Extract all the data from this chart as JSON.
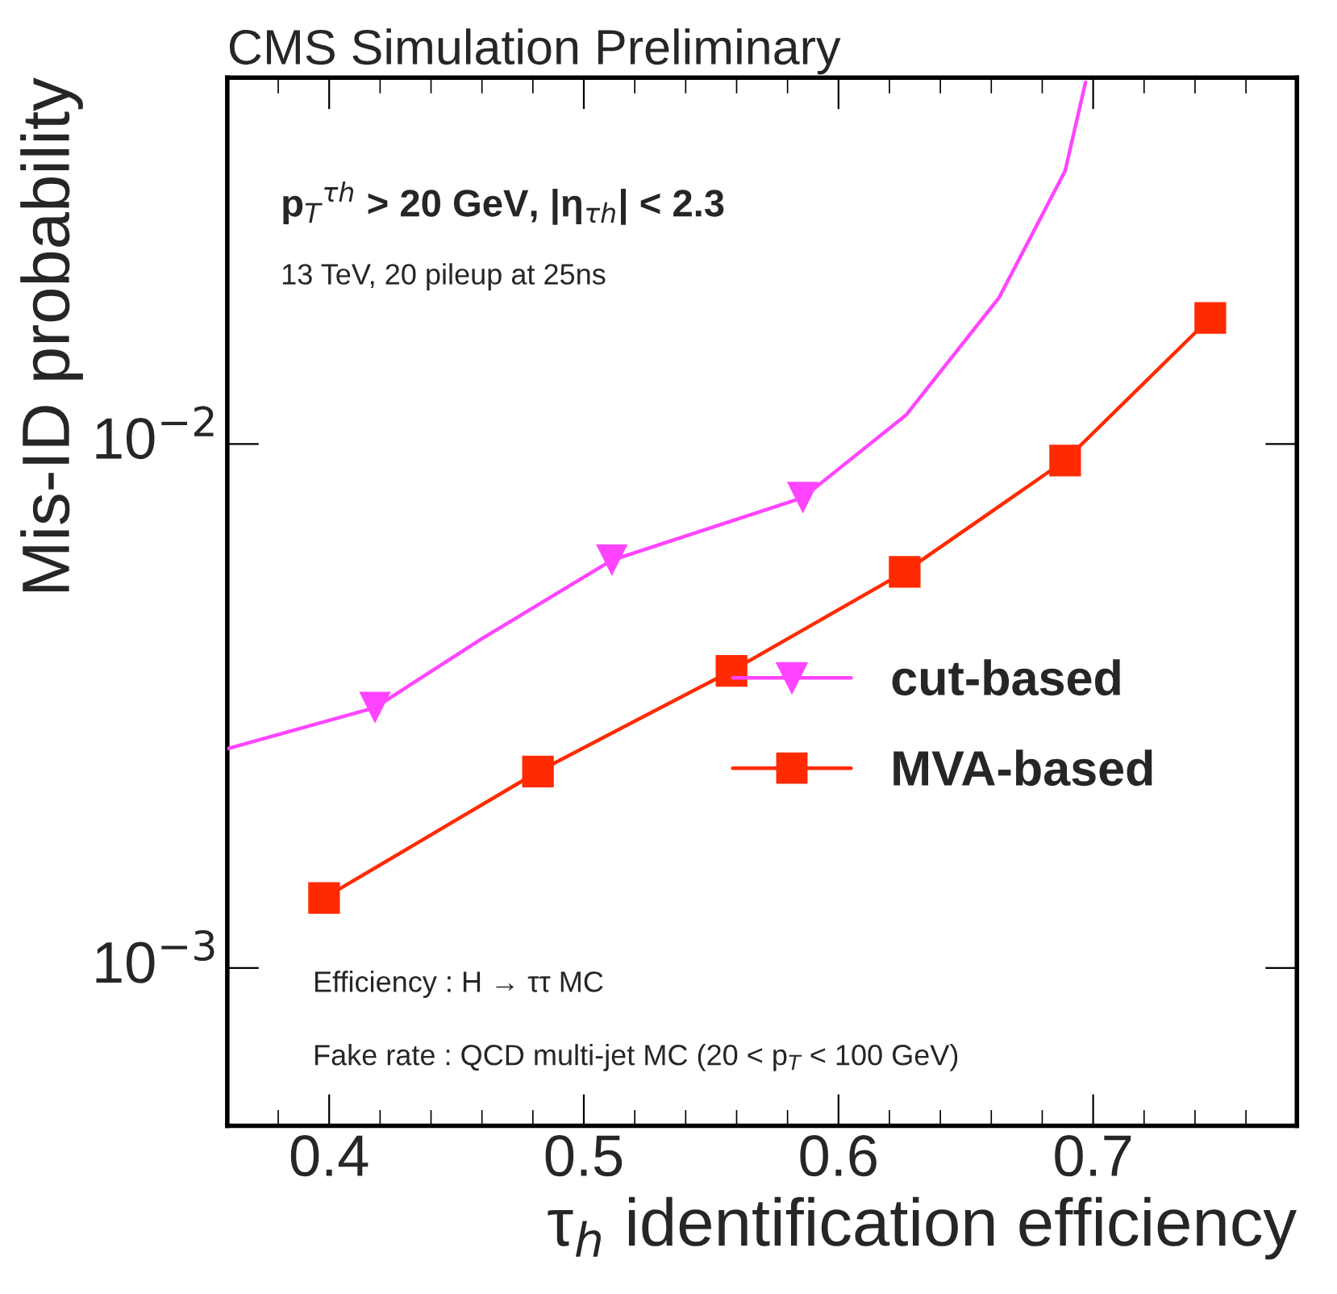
{
  "chart_data": {
    "type": "line",
    "title": "CMS Simulation Preliminary",
    "xlabel": "τ$_{h}$ identification efficiency",
    "ylabel": "Mis-ID probability",
    "log": "y",
    "xlim": [
      0.36,
      0.78
    ],
    "xticks": [
      0.4,
      0.5,
      0.6,
      0.7
    ],
    "ylim": [
      0.0005,
      0.05
    ],
    "yticks": [
      {
        "value": 0.001,
        "label": "10$^{−3}$"
      },
      {
        "value": 0.01,
        "label": "10$^{−2}$"
      }
    ],
    "grid": false,
    "legend": "right",
    "annotations": [
      "p$_{T}$$^{τh}$ > 20 GeV, |η$_{τh}$| < 2.3",
      "13 TeV, 20 pileup at 25ns",
      "Efficiency : H → ττ MC",
      "Fake rate : QCD multi-jet MC (20 < p$_{T}$ < 100 GeV)"
    ],
    "series": [
      {
        "type": "line",
        "color": "#ff44ff",
        "marker": "none",
        "x": [
          0.36,
          0.418,
          0.46,
          0.511,
          0.586,
          0.6265,
          0.663,
          0.689,
          0.697
        ],
        "values": [
          0.00262,
          0.00314,
          0.00425,
          0.006,
          0.0079,
          0.01135,
          0.019,
          0.0332,
          0.049
        ]
      },
      {
        "type": "scatter",
        "name": "cut-based",
        "color": "#ff44ff",
        "marker": "triangle",
        "x": [
          0.418,
          0.511,
          0.586
        ],
        "values": [
          0.00314,
          0.006,
          0.0079
        ]
      },
      {
        "name": "MVA-based",
        "color": "#ff2a00",
        "marker": "square",
        "x": [
          0.398,
          0.482,
          0.558,
          0.626,
          0.689,
          0.746
        ],
        "values": [
          0.00136,
          0.00237,
          0.00369,
          0.0057,
          0.0093,
          0.0174
        ]
      }
    ]
  }
}
